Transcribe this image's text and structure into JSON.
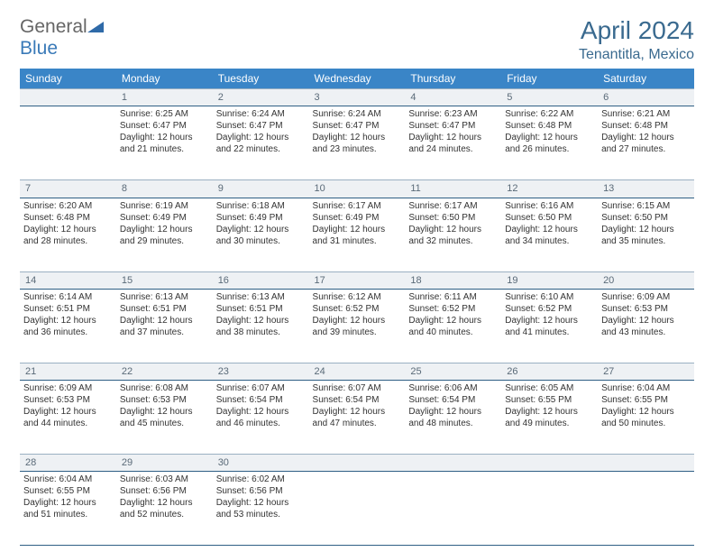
{
  "logo": {
    "textA": "General",
    "textB": "Blue"
  },
  "title": "April 2024",
  "location": "Tenantitla, Mexico",
  "colors": {
    "header_bg": "#3a85c7",
    "header_text": "#ffffff",
    "daynum_bg": "#eef1f4",
    "daynum_text": "#5a6a78",
    "border": "#2f5f85",
    "title_color": "#3a6a8f",
    "body_text": "#333333",
    "logo_gray": "#666666",
    "logo_blue": "#3a7ab8",
    "page_bg": "#ffffff"
  },
  "daysOfWeek": [
    "Sunday",
    "Monday",
    "Tuesday",
    "Wednesday",
    "Thursday",
    "Friday",
    "Saturday"
  ],
  "weeks": [
    {
      "nums": [
        "",
        "1",
        "2",
        "3",
        "4",
        "5",
        "6"
      ],
      "cells": [
        null,
        {
          "sunrise": "Sunrise: 6:25 AM",
          "sunset": "Sunset: 6:47 PM",
          "day1": "Daylight: 12 hours",
          "day2": "and 21 minutes."
        },
        {
          "sunrise": "Sunrise: 6:24 AM",
          "sunset": "Sunset: 6:47 PM",
          "day1": "Daylight: 12 hours",
          "day2": "and 22 minutes."
        },
        {
          "sunrise": "Sunrise: 6:24 AM",
          "sunset": "Sunset: 6:47 PM",
          "day1": "Daylight: 12 hours",
          "day2": "and 23 minutes."
        },
        {
          "sunrise": "Sunrise: 6:23 AM",
          "sunset": "Sunset: 6:47 PM",
          "day1": "Daylight: 12 hours",
          "day2": "and 24 minutes."
        },
        {
          "sunrise": "Sunrise: 6:22 AM",
          "sunset": "Sunset: 6:48 PM",
          "day1": "Daylight: 12 hours",
          "day2": "and 26 minutes."
        },
        {
          "sunrise": "Sunrise: 6:21 AM",
          "sunset": "Sunset: 6:48 PM",
          "day1": "Daylight: 12 hours",
          "day2": "and 27 minutes."
        }
      ]
    },
    {
      "nums": [
        "7",
        "8",
        "9",
        "10",
        "11",
        "12",
        "13"
      ],
      "cells": [
        {
          "sunrise": "Sunrise: 6:20 AM",
          "sunset": "Sunset: 6:48 PM",
          "day1": "Daylight: 12 hours",
          "day2": "and 28 minutes."
        },
        {
          "sunrise": "Sunrise: 6:19 AM",
          "sunset": "Sunset: 6:49 PM",
          "day1": "Daylight: 12 hours",
          "day2": "and 29 minutes."
        },
        {
          "sunrise": "Sunrise: 6:18 AM",
          "sunset": "Sunset: 6:49 PM",
          "day1": "Daylight: 12 hours",
          "day2": "and 30 minutes."
        },
        {
          "sunrise": "Sunrise: 6:17 AM",
          "sunset": "Sunset: 6:49 PM",
          "day1": "Daylight: 12 hours",
          "day2": "and 31 minutes."
        },
        {
          "sunrise": "Sunrise: 6:17 AM",
          "sunset": "Sunset: 6:50 PM",
          "day1": "Daylight: 12 hours",
          "day2": "and 32 minutes."
        },
        {
          "sunrise": "Sunrise: 6:16 AM",
          "sunset": "Sunset: 6:50 PM",
          "day1": "Daylight: 12 hours",
          "day2": "and 34 minutes."
        },
        {
          "sunrise": "Sunrise: 6:15 AM",
          "sunset": "Sunset: 6:50 PM",
          "day1": "Daylight: 12 hours",
          "day2": "and 35 minutes."
        }
      ]
    },
    {
      "nums": [
        "14",
        "15",
        "16",
        "17",
        "18",
        "19",
        "20"
      ],
      "cells": [
        {
          "sunrise": "Sunrise: 6:14 AM",
          "sunset": "Sunset: 6:51 PM",
          "day1": "Daylight: 12 hours",
          "day2": "and 36 minutes."
        },
        {
          "sunrise": "Sunrise: 6:13 AM",
          "sunset": "Sunset: 6:51 PM",
          "day1": "Daylight: 12 hours",
          "day2": "and 37 minutes."
        },
        {
          "sunrise": "Sunrise: 6:13 AM",
          "sunset": "Sunset: 6:51 PM",
          "day1": "Daylight: 12 hours",
          "day2": "and 38 minutes."
        },
        {
          "sunrise": "Sunrise: 6:12 AM",
          "sunset": "Sunset: 6:52 PM",
          "day1": "Daylight: 12 hours",
          "day2": "and 39 minutes."
        },
        {
          "sunrise": "Sunrise: 6:11 AM",
          "sunset": "Sunset: 6:52 PM",
          "day1": "Daylight: 12 hours",
          "day2": "and 40 minutes."
        },
        {
          "sunrise": "Sunrise: 6:10 AM",
          "sunset": "Sunset: 6:52 PM",
          "day1": "Daylight: 12 hours",
          "day2": "and 41 minutes."
        },
        {
          "sunrise": "Sunrise: 6:09 AM",
          "sunset": "Sunset: 6:53 PM",
          "day1": "Daylight: 12 hours",
          "day2": "and 43 minutes."
        }
      ]
    },
    {
      "nums": [
        "21",
        "22",
        "23",
        "24",
        "25",
        "26",
        "27"
      ],
      "cells": [
        {
          "sunrise": "Sunrise: 6:09 AM",
          "sunset": "Sunset: 6:53 PM",
          "day1": "Daylight: 12 hours",
          "day2": "and 44 minutes."
        },
        {
          "sunrise": "Sunrise: 6:08 AM",
          "sunset": "Sunset: 6:53 PM",
          "day1": "Daylight: 12 hours",
          "day2": "and 45 minutes."
        },
        {
          "sunrise": "Sunrise: 6:07 AM",
          "sunset": "Sunset: 6:54 PM",
          "day1": "Daylight: 12 hours",
          "day2": "and 46 minutes."
        },
        {
          "sunrise": "Sunrise: 6:07 AM",
          "sunset": "Sunset: 6:54 PM",
          "day1": "Daylight: 12 hours",
          "day2": "and 47 minutes."
        },
        {
          "sunrise": "Sunrise: 6:06 AM",
          "sunset": "Sunset: 6:54 PM",
          "day1": "Daylight: 12 hours",
          "day2": "and 48 minutes."
        },
        {
          "sunrise": "Sunrise: 6:05 AM",
          "sunset": "Sunset: 6:55 PM",
          "day1": "Daylight: 12 hours",
          "day2": "and 49 minutes."
        },
        {
          "sunrise": "Sunrise: 6:04 AM",
          "sunset": "Sunset: 6:55 PM",
          "day1": "Daylight: 12 hours",
          "day2": "and 50 minutes."
        }
      ]
    },
    {
      "nums": [
        "28",
        "29",
        "30",
        "",
        "",
        "",
        ""
      ],
      "cells": [
        {
          "sunrise": "Sunrise: 6:04 AM",
          "sunset": "Sunset: 6:55 PM",
          "day1": "Daylight: 12 hours",
          "day2": "and 51 minutes."
        },
        {
          "sunrise": "Sunrise: 6:03 AM",
          "sunset": "Sunset: 6:56 PM",
          "day1": "Daylight: 12 hours",
          "day2": "and 52 minutes."
        },
        {
          "sunrise": "Sunrise: 6:02 AM",
          "sunset": "Sunset: 6:56 PM",
          "day1": "Daylight: 12 hours",
          "day2": "and 53 minutes."
        },
        null,
        null,
        null,
        null
      ]
    }
  ]
}
